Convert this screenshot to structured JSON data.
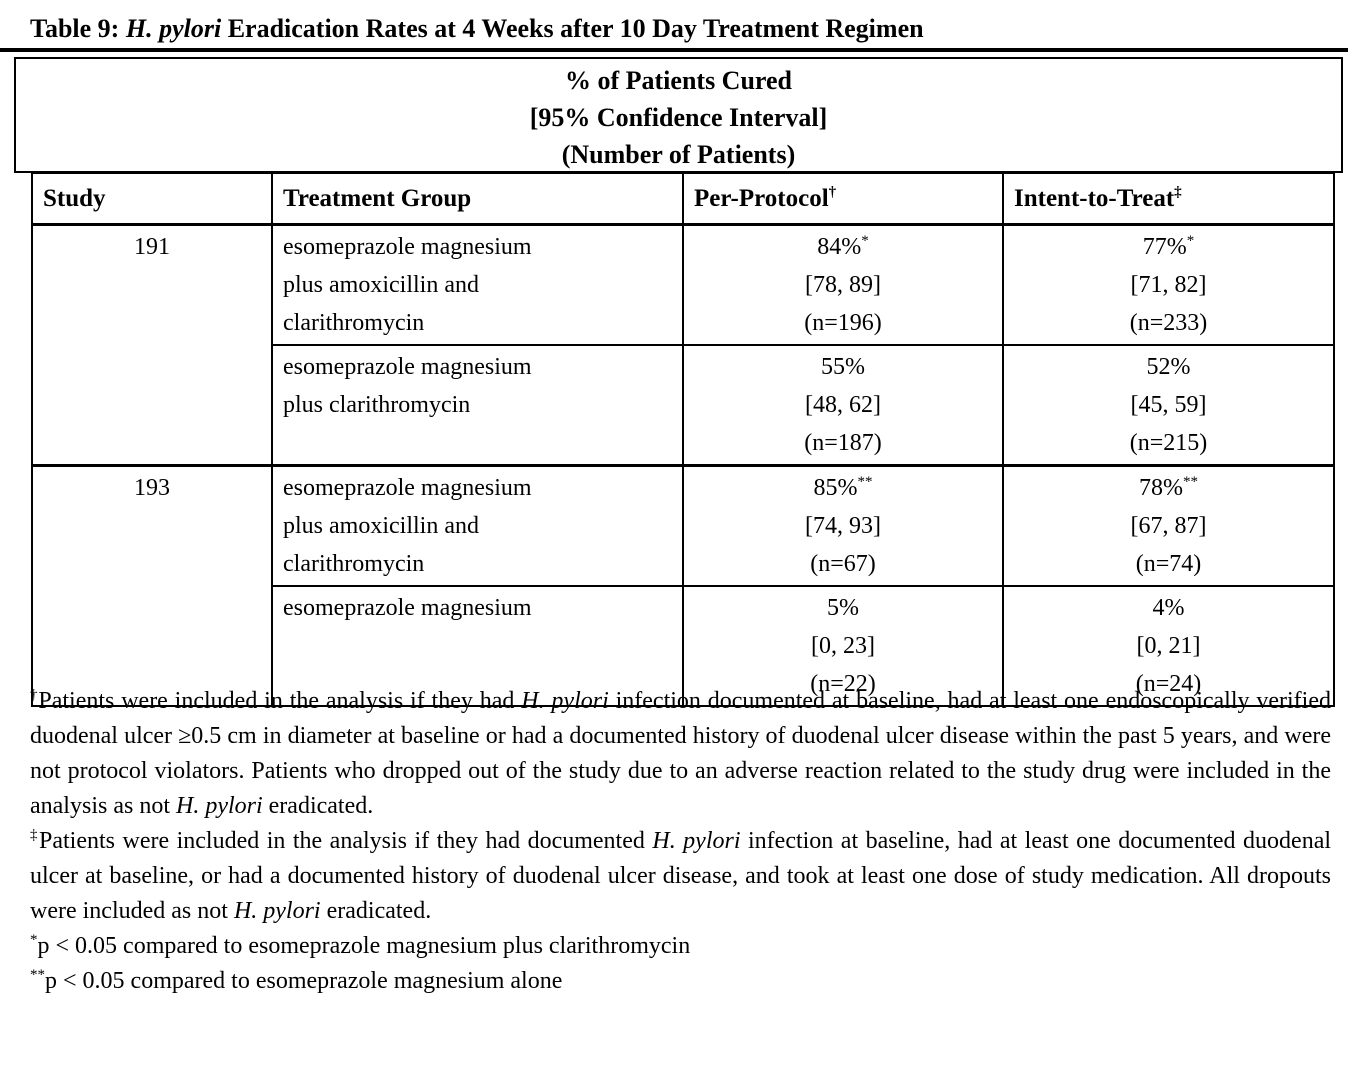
{
  "title": {
    "prefix": "Table 9: ",
    "emphasis": "H. pylori",
    "suffix": " Eradication Rates at 4 Weeks after 10 Day Treatment Regimen"
  },
  "spanning_header": {
    "line1": "% of Patients Cured",
    "line2": "[95% Confidence Interval]",
    "line3": "(Number of Patients)"
  },
  "columns": {
    "study": "Study",
    "treatment_group": "Treatment Group",
    "per_protocol": "Per-Protocol",
    "per_protocol_marker": "†",
    "intent_to_treat": "Intent-to-Treat",
    "intent_to_treat_marker": "‡"
  },
  "rows": [
    {
      "study": "191",
      "treatment": "esomeprazole magnesium\nplus amoxicillin and\nclarithromycin",
      "pp_rate": "84%",
      "pp_marker": "*",
      "pp_ci": "[78, 89]",
      "pp_n": "(n=196)",
      "itt_rate": "77%",
      "itt_marker": "*",
      "itt_ci": "[71, 82]",
      "itt_n": "(n=233)"
    },
    {
      "treatment": "esomeprazole magnesium\nplus clarithromycin",
      "pp_rate": "55%",
      "pp_marker": "",
      "pp_ci": "[48, 62]",
      "pp_n": "(n=187)",
      "itt_rate": "52%",
      "itt_marker": "",
      "itt_ci": "[45, 59]",
      "itt_n": "(n=215)"
    },
    {
      "study": "193",
      "treatment": "esomeprazole magnesium\nplus amoxicillin and\nclarithromycin",
      "pp_rate": "85%",
      "pp_marker": "**",
      "pp_ci": "[74, 93]",
      "pp_n": "(n=67)",
      "itt_rate": "78%",
      "itt_marker": "**",
      "itt_ci": "[67, 87]",
      "itt_n": "(n=74)"
    },
    {
      "treatment": "esomeprazole magnesium",
      "pp_rate": "5%",
      "pp_marker": "",
      "pp_ci": "[0, 23]",
      "pp_n": "(n=22)",
      "itt_rate": "4%",
      "itt_marker": "",
      "itt_ci": "[0, 21]",
      "itt_n": "(n=24)"
    }
  ],
  "footnotes": {
    "dagger": [
      {
        "t": "sup",
        "text": "†"
      },
      {
        "t": "",
        "text": "Patients were included in the analysis if they had "
      },
      {
        "t": "i",
        "text": "H. pylori"
      },
      {
        "t": "",
        "text": " infection documented at baseline, had at least one endoscopically verified duodenal ulcer ≥0.5 cm in diameter at baseline or had a documented history of duodenal ulcer disease within the past 5 years, and were not protocol violators. Patients who dropped out of the study due to an adverse reaction related to the study drug were included in the analysis as not "
      },
      {
        "t": "i",
        "text": "H. pylori"
      },
      {
        "t": "",
        "text": " eradicated."
      }
    ],
    "double_dagger": [
      {
        "t": "sup",
        "text": "‡"
      },
      {
        "t": "",
        "text": "Patients were included in the analysis if they had documented "
      },
      {
        "t": "i",
        "text": "H. pylori"
      },
      {
        "t": "",
        "text": " infection at baseline, had at least one documented duodenal ulcer at baseline, or had a documented history of duodenal ulcer disease, and took at least one dose of study medication. All dropouts were included as not "
      },
      {
        "t": "i",
        "text": "H. pylori"
      },
      {
        "t": "",
        "text": " eradicated."
      }
    ],
    "asterisk": [
      {
        "t": "sup",
        "text": "*"
      },
      {
        "t": "",
        "text": "p < 0.05 compared to esomeprazole magnesium plus clarithromycin"
      }
    ],
    "double_asterisk": [
      {
        "t": "sup",
        "text": "**"
      },
      {
        "t": "",
        "text": "p < 0.05 compared to esomeprazole magnesium alone"
      }
    ]
  }
}
